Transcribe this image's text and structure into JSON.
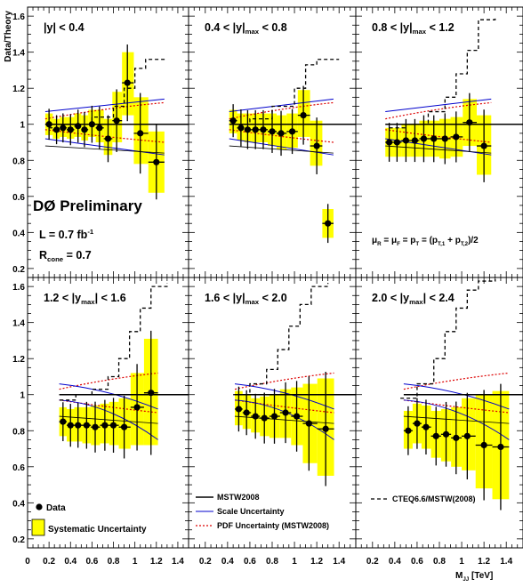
{
  "figure": {
    "y_axis_label": "Data/Theory",
    "x_axis_label_main": "M",
    "x_axis_label_sub": "JJ",
    "x_axis_label_unit": " [TeV]",
    "experiment_label": "DØ Preliminary",
    "lumi_main": "L = 0.7 fb",
    "lumi_sup": "-1",
    "rcone_main": "R",
    "rcone_sub": "cone",
    "rcone_value": " = 0.7",
    "scale_formula": "μR = μF = pT = (pT,1 + pT,2)/2"
  },
  "legend": {
    "data": "Data",
    "systematic": "Systematic Uncertainty",
    "mstw": "MSTW2008",
    "scale": "Scale  Uncertainty",
    "pdf": "PDF Uncertainty (MSTW2008)",
    "cteq": "CTEQ6.6/MSTW(2008)"
  },
  "colors": {
    "data": "#000000",
    "systematic_band": "#ffff00",
    "scale_uncertainty": "#0000cc",
    "pdf_uncertainty": "#dd0000",
    "cteq_ratio": "#000000"
  },
  "chart_data": [
    {
      "type": "scatter",
      "panel_label": "|y| < 0.4",
      "xlim": [
        0,
        1.5
      ],
      "ylim": [
        0.15,
        1.65
      ],
      "x_ticks": [
        "0",
        "0.2",
        "0.4",
        "0.6",
        "0.8",
        "1",
        "1.2",
        "1.4"
      ],
      "y_ticks": [
        "0.2",
        "0.4",
        "0.6",
        "0.8",
        "1",
        "1.2",
        "1.4",
        "1.6"
      ],
      "series": [
        {
          "name": "Data",
          "x": [
            0.2,
            0.27,
            0.33,
            0.4,
            0.47,
            0.53,
            0.6,
            0.67,
            0.75,
            0.83,
            0.93,
            1.05,
            1.2
          ],
          "y": [
            1.0,
            0.97,
            0.98,
            0.97,
            0.99,
            0.97,
            1.0,
            0.98,
            0.92,
            1.02,
            1.23,
            0.95,
            0.79
          ]
        },
        {
          "name": "Systematic Uncertainty",
          "x": [
            0.2,
            0.27,
            0.33,
            0.4,
            0.47,
            0.53,
            0.6,
            0.67,
            0.75,
            0.83,
            0.93,
            1.05,
            1.2
          ],
          "y_low": [
            0.94,
            0.92,
            0.93,
            0.92,
            0.93,
            0.91,
            0.93,
            0.9,
            0.83,
            0.9,
            1.05,
            0.78,
            0.62
          ],
          "y_high": [
            1.06,
            1.03,
            1.04,
            1.04,
            1.06,
            1.05,
            1.08,
            1.08,
            1.03,
            1.18,
            1.4,
            1.15,
            0.96
          ]
        },
        {
          "name": "CTEQ6.6/MSTW(2008)",
          "x": [
            0.2,
            0.4,
            0.6,
            0.8,
            0.9,
            1.0,
            1.1,
            1.3
          ],
          "y": [
            0.98,
            1.0,
            1.04,
            1.1,
            1.2,
            1.31,
            1.36,
            1.36
          ]
        }
      ]
    },
    {
      "type": "scatter",
      "panel_label": "0.4 < |y|max < 0.8",
      "xlim": [
        0.05,
        1.55
      ],
      "ylim": [
        0.15,
        1.65
      ],
      "x_ticks": [
        "0.2",
        "0.4",
        "0.6",
        "0.8",
        "1",
        "1.2",
        "1.4"
      ],
      "series": [
        {
          "name": "Data",
          "x": [
            0.45,
            0.52,
            0.58,
            0.65,
            0.72,
            0.8,
            0.88,
            0.98,
            1.08,
            1.2,
            1.3
          ],
          "y": [
            1.02,
            0.98,
            0.97,
            0.97,
            0.97,
            0.96,
            0.95,
            0.96,
            1.05,
            0.88,
            0.45
          ]
        },
        {
          "name": "Systematic Uncertainty",
          "x": [
            0.45,
            0.52,
            0.58,
            0.65,
            0.72,
            0.8,
            0.88,
            0.98,
            1.08,
            1.2,
            1.3
          ],
          "y_low": [
            0.95,
            0.91,
            0.9,
            0.9,
            0.9,
            0.88,
            0.86,
            0.87,
            0.93,
            0.77,
            0.37
          ],
          "y_high": [
            1.08,
            1.06,
            1.06,
            1.06,
            1.06,
            1.06,
            1.05,
            1.06,
            1.19,
            1.02,
            0.53
          ]
        },
        {
          "name": "CTEQ6.6/MSTW(2008)",
          "x": [
            0.45,
            0.6,
            0.8,
            1.0,
            1.1,
            1.2,
            1.4
          ],
          "y": [
            1.0,
            1.03,
            1.1,
            1.2,
            1.33,
            1.36,
            1.36
          ]
        }
      ]
    },
    {
      "type": "scatter",
      "panel_label": "0.8 < |y|max < 1.2",
      "xlim": [
        0.05,
        1.55
      ],
      "ylim": [
        0.15,
        1.65
      ],
      "x_ticks": [
        "0.2",
        "0.4",
        "0.6",
        "0.8",
        "1",
        "1.2",
        "1.4"
      ],
      "series": [
        {
          "name": "Data",
          "x": [
            0.35,
            0.42,
            0.5,
            0.58,
            0.66,
            0.75,
            0.85,
            0.95,
            1.07,
            1.2
          ],
          "y": [
            0.9,
            0.9,
            0.91,
            0.91,
            0.92,
            0.92,
            0.92,
            0.93,
            1.01,
            0.88
          ]
        },
        {
          "name": "Systematic Uncertainty",
          "x": [
            0.35,
            0.42,
            0.5,
            0.58,
            0.66,
            0.75,
            0.85,
            0.95,
            1.07,
            1.2
          ],
          "y_low": [
            0.82,
            0.82,
            0.82,
            0.82,
            0.82,
            0.82,
            0.81,
            0.82,
            0.88,
            0.72
          ],
          "y_high": [
            0.98,
            0.98,
            1.0,
            1.0,
            1.02,
            1.02,
            1.03,
            1.04,
            1.14,
            1.05
          ]
        },
        {
          "name": "CTEQ6.6/MSTW(2008)",
          "x": [
            0.35,
            0.5,
            0.7,
            0.85,
            0.95,
            1.05,
            1.15,
            1.3
          ],
          "y": [
            0.98,
            1.0,
            1.07,
            1.15,
            1.28,
            1.41,
            1.58,
            1.6
          ]
        }
      ]
    },
    {
      "type": "scatter",
      "panel_label": "1.2 < |ymax| < 1.6",
      "xlim": [
        0,
        1.5
      ],
      "ylim": [
        0.15,
        1.65
      ],
      "x_ticks": [
        "0",
        "0.2",
        "0.4",
        "0.6",
        "0.8",
        "1",
        "1.2",
        "1.4"
      ],
      "y_ticks": [
        "0.2",
        "0.4",
        "0.6",
        "0.8",
        "1",
        "1.2",
        "1.4",
        "1.6"
      ],
      "series": [
        {
          "name": "Data",
          "x": [
            0.33,
            0.4,
            0.47,
            0.55,
            0.63,
            0.72,
            0.8,
            0.9,
            1.02,
            1.15
          ],
          "y": [
            0.85,
            0.83,
            0.83,
            0.83,
            0.82,
            0.83,
            0.83,
            0.82,
            0.93,
            1.01
          ]
        },
        {
          "name": "Systematic Uncertainty",
          "x": [
            0.33,
            0.4,
            0.47,
            0.55,
            0.63,
            0.72,
            0.8,
            0.9,
            1.02,
            1.15
          ],
          "y_low": [
            0.77,
            0.74,
            0.74,
            0.73,
            0.72,
            0.73,
            0.72,
            0.7,
            0.72,
            0.72
          ],
          "y_high": [
            0.93,
            0.92,
            0.93,
            0.93,
            0.94,
            0.95,
            0.96,
            0.98,
            1.12,
            1.31
          ]
        },
        {
          "name": "CTEQ6.6/MSTW(2008)",
          "x": [
            0.3,
            0.45,
            0.6,
            0.75,
            0.85,
            0.95,
            1.05,
            1.15,
            1.3
          ],
          "y": [
            0.97,
            1.0,
            1.03,
            1.1,
            1.2,
            1.35,
            1.48,
            1.6,
            1.62
          ]
        }
      ]
    },
    {
      "type": "scatter",
      "panel_label": "1.6 < |y|max < 2.0",
      "xlim": [
        0.05,
        1.55
      ],
      "ylim": [
        0.15,
        1.65
      ],
      "x_ticks": [
        "0.2",
        "0.4",
        "0.6",
        "0.8",
        "1",
        "1.2",
        "1.4"
      ],
      "series": [
        {
          "name": "Data",
          "x": [
            0.5,
            0.57,
            0.65,
            0.73,
            0.82,
            0.92,
            1.02,
            1.13,
            1.28
          ],
          "y": [
            0.92,
            0.9,
            0.88,
            0.87,
            0.88,
            0.9,
            0.88,
            0.84,
            0.81
          ]
        },
        {
          "name": "Systematic Uncertainty",
          "x": [
            0.5,
            0.57,
            0.65,
            0.73,
            0.82,
            0.92,
            1.02,
            1.13,
            1.28
          ],
          "y_low": [
            0.83,
            0.81,
            0.79,
            0.77,
            0.76,
            0.76,
            0.72,
            0.62,
            0.55
          ],
          "y_high": [
            1.02,
            1.0,
            0.98,
            0.99,
            1.0,
            1.03,
            1.04,
            1.06,
            1.09
          ]
        },
        {
          "name": "CTEQ6.6/MSTW(2008)",
          "x": [
            0.45,
            0.6,
            0.75,
            0.85,
            0.95,
            1.05,
            1.15,
            1.3
          ],
          "y": [
            1.0,
            1.06,
            1.14,
            1.25,
            1.38,
            1.5,
            1.6,
            1.62
          ]
        }
      ]
    },
    {
      "type": "scatter",
      "panel_label": "2.0 < |ymax| < 2.4",
      "xlim": [
        0.05,
        1.55
      ],
      "ylim": [
        0.15,
        1.65
      ],
      "x_ticks": [
        "0.2",
        "0.4",
        "0.6",
        "0.8",
        "1",
        "1.2",
        "1.4"
      ],
      "series": [
        {
          "name": "Data",
          "x": [
            0.52,
            0.6,
            0.68,
            0.77,
            0.86,
            0.95,
            1.05,
            1.2,
            1.35
          ],
          "y": [
            0.8,
            0.84,
            0.82,
            0.77,
            0.78,
            0.76,
            0.77,
            0.72,
            0.71
          ]
        },
        {
          "name": "Systematic Uncertainty",
          "x": [
            0.52,
            0.6,
            0.68,
            0.77,
            0.86,
            0.95,
            1.05,
            1.2,
            1.35
          ],
          "y_low": [
            0.7,
            0.73,
            0.7,
            0.65,
            0.63,
            0.6,
            0.58,
            0.48,
            0.42
          ],
          "y_high": [
            0.91,
            0.95,
            0.94,
            0.91,
            0.92,
            0.93,
            0.98,
            1.0,
            1.02
          ]
        },
        {
          "name": "CTEQ6.6/MSTW(2008)",
          "x": [
            0.45,
            0.6,
            0.75,
            0.85,
            0.95,
            1.05,
            1.15,
            1.3
          ],
          "y": [
            0.98,
            1.06,
            1.2,
            1.35,
            1.48,
            1.58,
            1.63,
            1.64
          ]
        }
      ]
    }
  ]
}
